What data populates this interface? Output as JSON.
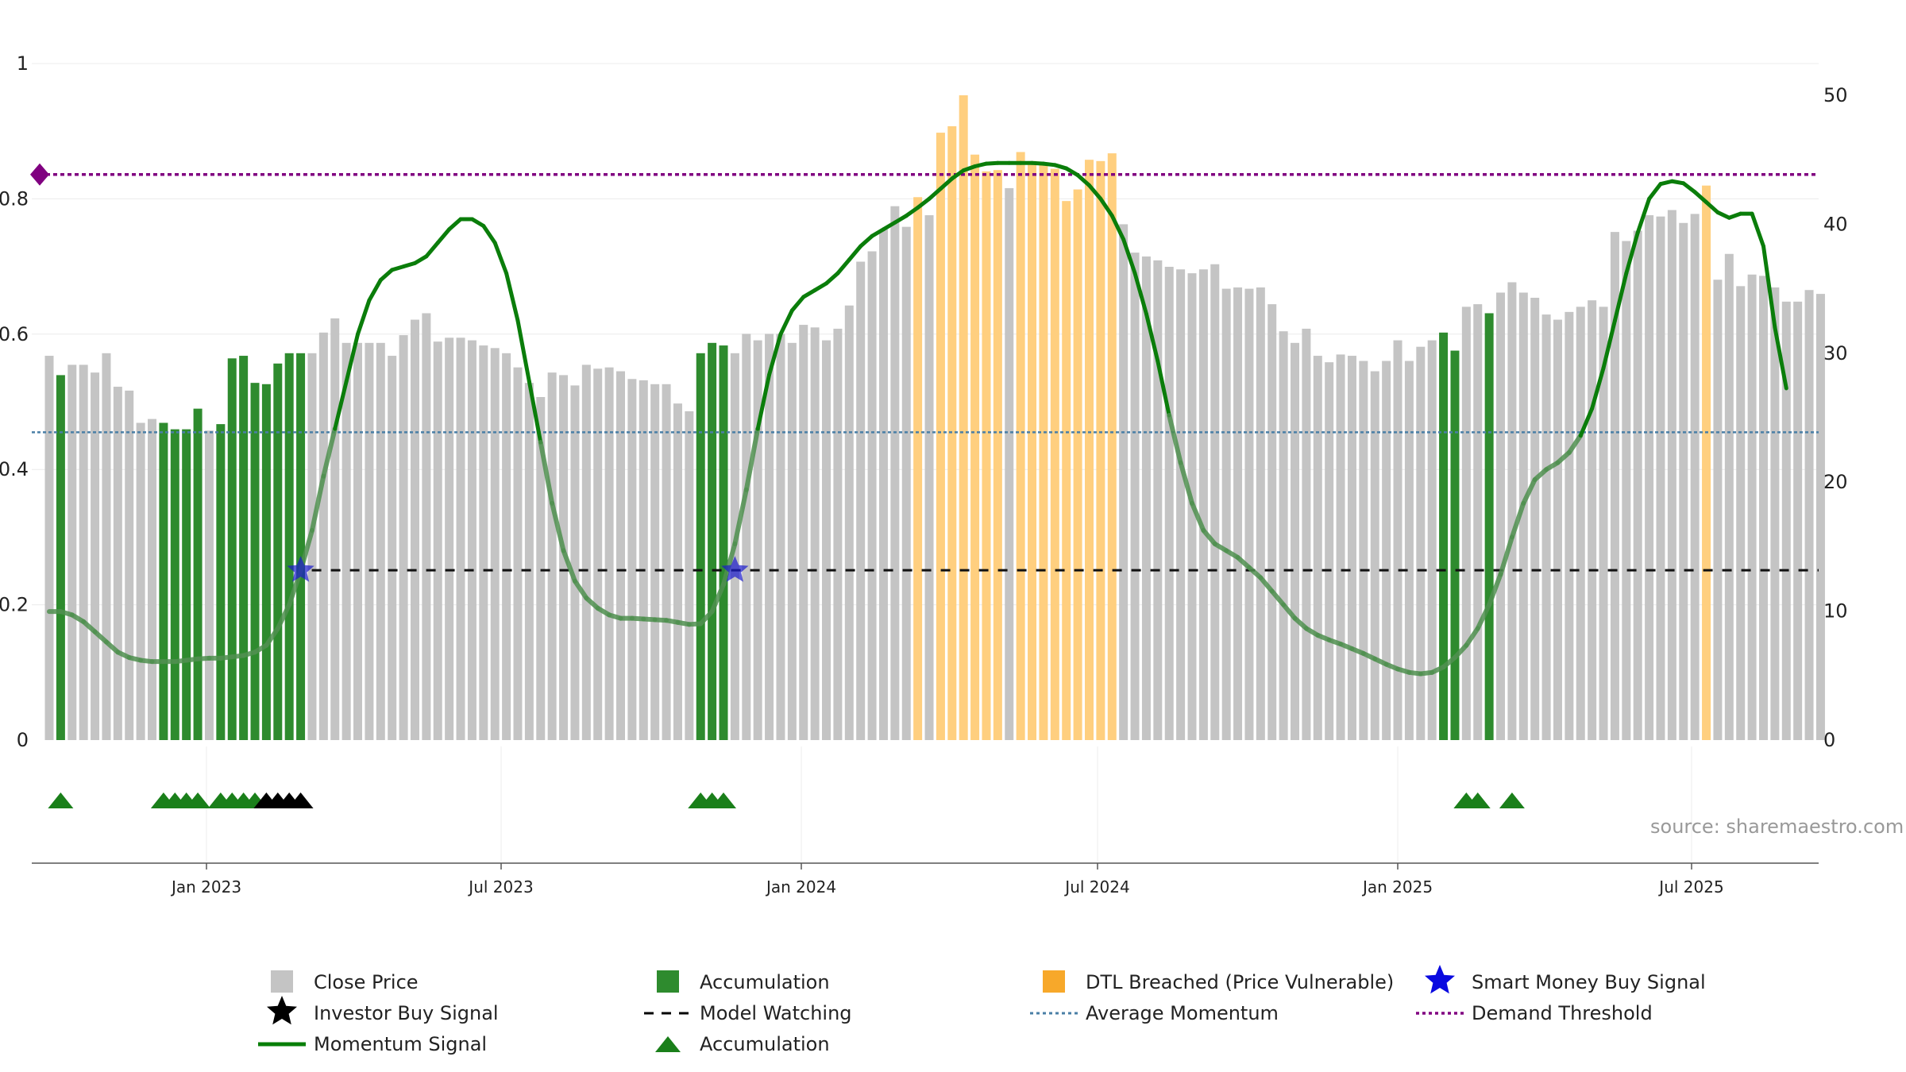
{
  "chart_data": {
    "type": "bar",
    "title": "",
    "source": "source: sharemaestro.com",
    "left_axis": {
      "range": [
        0,
        1.0
      ],
      "ticks": [
        "0",
        "0.2",
        "0.4",
        "0.6",
        "0.8",
        "1"
      ]
    },
    "right_axis": {
      "range": [
        0,
        50
      ],
      "ticks": [
        "0",
        "10",
        "20",
        "30",
        "40",
        "50"
      ]
    },
    "x_ticks": [
      "Jan 2023",
      "Jul 2023",
      "Jan 2024",
      "Jul 2024",
      "Jan 2025",
      "Jul 2025"
    ],
    "bar_kinds": {
      "g": "Close Price",
      "a": "Accumulation",
      "o": "DTL Breached (Price Vulnerable)"
    },
    "close_price_weekly": [
      {
        "v": 29.8,
        "k": "g"
      },
      {
        "v": 28.3,
        "k": "a"
      },
      {
        "v": 29.1,
        "k": "g"
      },
      {
        "v": 29.1,
        "k": "g"
      },
      {
        "v": 28.5,
        "k": "g"
      },
      {
        "v": 30.0,
        "k": "g"
      },
      {
        "v": 27.4,
        "k": "g"
      },
      {
        "v": 27.1,
        "k": "g"
      },
      {
        "v": 24.6,
        "k": "g"
      },
      {
        "v": 24.9,
        "k": "g"
      },
      {
        "v": 24.6,
        "k": "a"
      },
      {
        "v": 24.1,
        "k": "a"
      },
      {
        "v": 24.1,
        "k": "a"
      },
      {
        "v": 25.7,
        "k": "a"
      },
      {
        "v": 24.0,
        "k": "g"
      },
      {
        "v": 24.5,
        "k": "a"
      },
      {
        "v": 29.6,
        "k": "a"
      },
      {
        "v": 29.8,
        "k": "a"
      },
      {
        "v": 27.7,
        "k": "a"
      },
      {
        "v": 27.6,
        "k": "a"
      },
      {
        "v": 29.2,
        "k": "a"
      },
      {
        "v": 30.0,
        "k": "a"
      },
      {
        "v": 30.0,
        "k": "a"
      },
      {
        "v": 30.0,
        "k": "g"
      },
      {
        "v": 31.6,
        "k": "g"
      },
      {
        "v": 32.7,
        "k": "g"
      },
      {
        "v": 30.8,
        "k": "g"
      },
      {
        "v": 30.8,
        "k": "g"
      },
      {
        "v": 30.8,
        "k": "g"
      },
      {
        "v": 30.8,
        "k": "g"
      },
      {
        "v": 29.8,
        "k": "g"
      },
      {
        "v": 31.4,
        "k": "g"
      },
      {
        "v": 32.6,
        "k": "g"
      },
      {
        "v": 33.1,
        "k": "g"
      },
      {
        "v": 30.9,
        "k": "g"
      },
      {
        "v": 31.2,
        "k": "g"
      },
      {
        "v": 31.2,
        "k": "g"
      },
      {
        "v": 31.0,
        "k": "g"
      },
      {
        "v": 30.6,
        "k": "g"
      },
      {
        "v": 30.4,
        "k": "g"
      },
      {
        "v": 30.0,
        "k": "g"
      },
      {
        "v": 28.9,
        "k": "g"
      },
      {
        "v": 27.7,
        "k": "g"
      },
      {
        "v": 26.6,
        "k": "g"
      },
      {
        "v": 28.5,
        "k": "g"
      },
      {
        "v": 28.3,
        "k": "g"
      },
      {
        "v": 27.5,
        "k": "g"
      },
      {
        "v": 29.1,
        "k": "g"
      },
      {
        "v": 28.8,
        "k": "g"
      },
      {
        "v": 28.9,
        "k": "g"
      },
      {
        "v": 28.6,
        "k": "g"
      },
      {
        "v": 28.0,
        "k": "g"
      },
      {
        "v": 27.9,
        "k": "g"
      },
      {
        "v": 27.6,
        "k": "g"
      },
      {
        "v": 27.6,
        "k": "g"
      },
      {
        "v": 26.1,
        "k": "g"
      },
      {
        "v": 25.5,
        "k": "g"
      },
      {
        "v": 30.0,
        "k": "a"
      },
      {
        "v": 30.8,
        "k": "a"
      },
      {
        "v": 30.6,
        "k": "a"
      },
      {
        "v": 30.0,
        "k": "g"
      },
      {
        "v": 31.5,
        "k": "g"
      },
      {
        "v": 31.0,
        "k": "g"
      },
      {
        "v": 31.5,
        "k": "g"
      },
      {
        "v": 31.5,
        "k": "g"
      },
      {
        "v": 30.8,
        "k": "g"
      },
      {
        "v": 32.2,
        "k": "g"
      },
      {
        "v": 32.0,
        "k": "g"
      },
      {
        "v": 31.0,
        "k": "g"
      },
      {
        "v": 31.9,
        "k": "g"
      },
      {
        "v": 33.7,
        "k": "g"
      },
      {
        "v": 37.1,
        "k": "g"
      },
      {
        "v": 37.9,
        "k": "g"
      },
      {
        "v": 39.6,
        "k": "g"
      },
      {
        "v": 41.4,
        "k": "g"
      },
      {
        "v": 39.8,
        "k": "g"
      },
      {
        "v": 42.1,
        "k": "o"
      },
      {
        "v": 40.7,
        "k": "g"
      },
      {
        "v": 47.1,
        "k": "o"
      },
      {
        "v": 47.6,
        "k": "o"
      },
      {
        "v": 50.0,
        "k": "o"
      },
      {
        "v": 45.4,
        "k": "o"
      },
      {
        "v": 44.1,
        "k": "o"
      },
      {
        "v": 44.2,
        "k": "o"
      },
      {
        "v": 42.8,
        "k": "g"
      },
      {
        "v": 45.6,
        "k": "o"
      },
      {
        "v": 44.9,
        "k": "o"
      },
      {
        "v": 44.7,
        "k": "o"
      },
      {
        "v": 44.3,
        "k": "o"
      },
      {
        "v": 41.8,
        "k": "o"
      },
      {
        "v": 42.7,
        "k": "o"
      },
      {
        "v": 45.0,
        "k": "o"
      },
      {
        "v": 44.9,
        "k": "o"
      },
      {
        "v": 45.5,
        "k": "o"
      },
      {
        "v": 40.0,
        "k": "g"
      },
      {
        "v": 37.8,
        "k": "g"
      },
      {
        "v": 37.5,
        "k": "g"
      },
      {
        "v": 37.2,
        "k": "g"
      },
      {
        "v": 36.7,
        "k": "g"
      },
      {
        "v": 36.5,
        "k": "g"
      },
      {
        "v": 36.2,
        "k": "g"
      },
      {
        "v": 36.5,
        "k": "g"
      },
      {
        "v": 36.9,
        "k": "g"
      },
      {
        "v": 35.0,
        "k": "g"
      },
      {
        "v": 35.1,
        "k": "g"
      },
      {
        "v": 35.0,
        "k": "g"
      },
      {
        "v": 35.1,
        "k": "g"
      },
      {
        "v": 33.8,
        "k": "g"
      },
      {
        "v": 31.7,
        "k": "g"
      },
      {
        "v": 30.8,
        "k": "g"
      },
      {
        "v": 31.9,
        "k": "g"
      },
      {
        "v": 29.8,
        "k": "g"
      },
      {
        "v": 29.3,
        "k": "g"
      },
      {
        "v": 29.9,
        "k": "g"
      },
      {
        "v": 29.8,
        "k": "g"
      },
      {
        "v": 29.4,
        "k": "g"
      },
      {
        "v": 28.6,
        "k": "g"
      },
      {
        "v": 29.4,
        "k": "g"
      },
      {
        "v": 31.0,
        "k": "g"
      },
      {
        "v": 29.4,
        "k": "g"
      },
      {
        "v": 30.5,
        "k": "g"
      },
      {
        "v": 31.0,
        "k": "g"
      },
      {
        "v": 31.6,
        "k": "a"
      },
      {
        "v": 30.2,
        "k": "a"
      },
      {
        "v": 33.6,
        "k": "g"
      },
      {
        "v": 33.8,
        "k": "g"
      },
      {
        "v": 33.1,
        "k": "a"
      },
      {
        "v": 34.7,
        "k": "g"
      },
      {
        "v": 35.5,
        "k": "g"
      },
      {
        "v": 34.7,
        "k": "g"
      },
      {
        "v": 34.3,
        "k": "g"
      },
      {
        "v": 33.0,
        "k": "g"
      },
      {
        "v": 32.6,
        "k": "g"
      },
      {
        "v": 33.2,
        "k": "g"
      },
      {
        "v": 33.6,
        "k": "g"
      },
      {
        "v": 34.1,
        "k": "g"
      },
      {
        "v": 33.6,
        "k": "g"
      },
      {
        "v": 39.4,
        "k": "g"
      },
      {
        "v": 38.7,
        "k": "g"
      },
      {
        "v": 39.5,
        "k": "g"
      },
      {
        "v": 40.7,
        "k": "g"
      },
      {
        "v": 40.6,
        "k": "g"
      },
      {
        "v": 41.1,
        "k": "g"
      },
      {
        "v": 40.1,
        "k": "g"
      },
      {
        "v": 40.8,
        "k": "g"
      },
      {
        "v": 43.0,
        "k": "o"
      },
      {
        "v": 35.7,
        "k": "g"
      },
      {
        "v": 37.7,
        "k": "g"
      },
      {
        "v": 35.2,
        "k": "g"
      },
      {
        "v": 36.1,
        "k": "g"
      },
      {
        "v": 36.0,
        "k": "g"
      },
      {
        "v": 35.1,
        "k": "g"
      },
      {
        "v": 34.0,
        "k": "g"
      },
      {
        "v": 34.0,
        "k": "g"
      },
      {
        "v": 34.9,
        "k": "g"
      },
      {
        "v": 34.6,
        "k": "g"
      }
    ],
    "momentum_signal": [
      [
        0,
        0.19
      ],
      [
        1,
        0.19
      ],
      [
        2,
        0.185
      ],
      [
        3,
        0.175
      ],
      [
        4,
        0.16
      ],
      [
        5,
        0.145
      ],
      [
        6,
        0.13
      ],
      [
        7,
        0.122
      ],
      [
        8,
        0.118
      ],
      [
        9,
        0.116
      ],
      [
        10,
        0.116
      ],
      [
        11,
        0.116
      ],
      [
        12,
        0.118
      ],
      [
        13,
        0.12
      ],
      [
        14,
        0.121
      ],
      [
        15,
        0.121
      ],
      [
        16,
        0.123
      ],
      [
        17,
        0.125
      ],
      [
        18,
        0.13
      ],
      [
        19,
        0.14
      ],
      [
        20,
        0.165
      ],
      [
        21,
        0.2
      ],
      [
        22,
        0.25
      ],
      [
        23,
        0.31
      ],
      [
        24,
        0.39
      ],
      [
        25,
        0.46
      ],
      [
        26,
        0.53
      ],
      [
        27,
        0.6
      ],
      [
        28,
        0.65
      ],
      [
        29,
        0.68
      ],
      [
        30,
        0.695
      ],
      [
        31,
        0.7
      ],
      [
        32,
        0.705
      ],
      [
        33,
        0.715
      ],
      [
        34,
        0.735
      ],
      [
        35,
        0.755
      ],
      [
        36,
        0.77
      ],
      [
        37,
        0.77
      ],
      [
        38,
        0.76
      ],
      [
        39,
        0.735
      ],
      [
        40,
        0.69
      ],
      [
        41,
        0.62
      ],
      [
        42,
        0.53
      ],
      [
        43,
        0.44
      ],
      [
        44,
        0.35
      ],
      [
        45,
        0.28
      ],
      [
        46,
        0.235
      ],
      [
        47,
        0.21
      ],
      [
        48,
        0.195
      ],
      [
        49,
        0.185
      ],
      [
        50,
        0.18
      ],
      [
        51,
        0.18
      ],
      [
        52,
        0.179
      ],
      [
        53,
        0.178
      ],
      [
        54,
        0.177
      ],
      [
        55,
        0.174
      ],
      [
        56,
        0.171
      ],
      [
        57,
        0.172
      ],
      [
        58,
        0.19
      ],
      [
        59,
        0.23
      ],
      [
        60,
        0.29
      ],
      [
        61,
        0.37
      ],
      [
        62,
        0.46
      ],
      [
        63,
        0.54
      ],
      [
        64,
        0.6
      ],
      [
        65,
        0.635
      ],
      [
        66,
        0.655
      ],
      [
        67,
        0.665
      ],
      [
        68,
        0.675
      ],
      [
        69,
        0.69
      ],
      [
        70,
        0.71
      ],
      [
        71,
        0.73
      ],
      [
        72,
        0.745
      ],
      [
        73,
        0.755
      ],
      [
        74,
        0.765
      ],
      [
        75,
        0.775
      ],
      [
        76,
        0.787
      ],
      [
        77,
        0.8
      ],
      [
        78,
        0.815
      ],
      [
        79,
        0.83
      ],
      [
        80,
        0.842
      ],
      [
        81,
        0.848
      ],
      [
        82,
        0.852
      ],
      [
        83,
        0.853
      ],
      [
        84,
        0.853
      ],
      [
        85,
        0.853
      ],
      [
        86,
        0.853
      ],
      [
        87,
        0.852
      ],
      [
        88,
        0.85
      ],
      [
        89,
        0.845
      ],
      [
        90,
        0.835
      ],
      [
        91,
        0.82
      ],
      [
        92,
        0.8
      ],
      [
        93,
        0.775
      ],
      [
        94,
        0.74
      ],
      [
        95,
        0.69
      ],
      [
        96,
        0.63
      ],
      [
        97,
        0.56
      ],
      [
        98,
        0.48
      ],
      [
        99,
        0.41
      ],
      [
        100,
        0.35
      ],
      [
        101,
        0.31
      ],
      [
        102,
        0.29
      ],
      [
        103,
        0.28
      ],
      [
        104,
        0.27
      ],
      [
        105,
        0.255
      ],
      [
        106,
        0.24
      ],
      [
        107,
        0.22
      ],
      [
        108,
        0.2
      ],
      [
        109,
        0.18
      ],
      [
        110,
        0.165
      ],
      [
        111,
        0.155
      ],
      [
        112,
        0.148
      ],
      [
        113,
        0.142
      ],
      [
        114,
        0.135
      ],
      [
        115,
        0.128
      ],
      [
        116,
        0.12
      ],
      [
        117,
        0.112
      ],
      [
        118,
        0.105
      ],
      [
        119,
        0.1
      ],
      [
        120,
        0.098
      ],
      [
        121,
        0.1
      ],
      [
        122,
        0.108
      ],
      [
        123,
        0.122
      ],
      [
        124,
        0.14
      ],
      [
        125,
        0.165
      ],
      [
        126,
        0.2
      ],
      [
        127,
        0.245
      ],
      [
        128,
        0.3
      ],
      [
        129,
        0.35
      ],
      [
        130,
        0.385
      ],
      [
        131,
        0.4
      ],
      [
        132,
        0.41
      ],
      [
        133,
        0.425
      ],
      [
        134,
        0.45
      ],
      [
        135,
        0.49
      ],
      [
        136,
        0.55
      ],
      [
        137,
        0.62
      ],
      [
        138,
        0.69
      ],
      [
        139,
        0.75
      ],
      [
        140,
        0.8
      ],
      [
        141,
        0.822
      ],
      [
        142,
        0.826
      ],
      [
        143,
        0.823
      ],
      [
        144,
        0.81
      ],
      [
        145,
        0.795
      ],
      [
        146,
        0.78
      ],
      [
        147,
        0.772
      ],
      [
        148,
        0.778
      ],
      [
        149,
        0.778
      ],
      [
        150,
        0.73
      ],
      [
        151,
        0.61
      ],
      [
        152,
        0.52
      ]
    ],
    "average_momentum": 0.455,
    "demand_threshold": 0.836,
    "model_watching": 0.251,
    "smart_money_buy_signal_weeks": [
      22,
      60
    ],
    "accumulation_triangle_weeks": [
      1,
      10,
      11,
      12,
      13,
      15,
      16,
      17,
      18,
      57,
      58,
      59,
      124,
      125,
      128
    ],
    "investor_buy_signal_weeks": [
      19,
      20,
      21,
      22
    ],
    "legend": [
      {
        "label": "Close Price",
        "marker": "gray-square"
      },
      {
        "label": "Accumulation",
        "marker": "green-square"
      },
      {
        "label": "DTL Breached (Price Vulnerable)",
        "marker": "orange-square"
      },
      {
        "label": "Smart Money Buy Signal",
        "marker": "blue-star"
      },
      {
        "label": "Investor Buy Signal",
        "marker": "black-star"
      },
      {
        "label": "Model Watching",
        "marker": "black-dashed-line"
      },
      {
        "label": "Average Momentum",
        "marker": "blue-dotted-line"
      },
      {
        "label": "Demand Threshold",
        "marker": "purple-dotted-line"
      },
      {
        "label": "Momentum Signal",
        "marker": "green-line"
      },
      {
        "label": "Accumulation",
        "marker": "green-triangle"
      }
    ],
    "colors": {
      "close_price": "#c4c4c4",
      "accumulation": "#2e8b2e",
      "dtl_breached": "#ffcf7f",
      "momentum": "#0a7d0a",
      "average_momentum": "#4a7fa6",
      "demand_threshold": "#800080",
      "model_watching": "#111111",
      "smart_money": "#1a1acc",
      "triangle": "#1a7f1a",
      "investor": "#000000"
    }
  }
}
